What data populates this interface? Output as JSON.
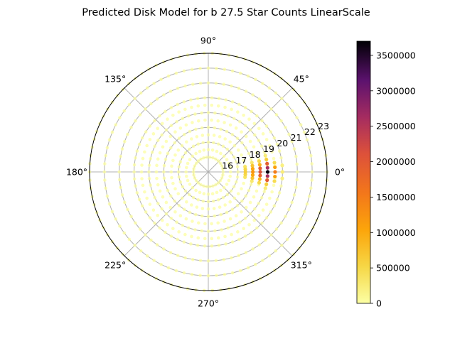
{
  "chart_data": {
    "type": "scatter",
    "projection": "polar",
    "title": "Predicted Disk Model for b 27.5  Star Counts  LinearScale",
    "theta_tick_labels": [
      "0°",
      "45°",
      "90°",
      "135°",
      "180°",
      "225°",
      "270°",
      "315°"
    ],
    "theta_ticks_deg": [
      0,
      45,
      90,
      135,
      180,
      225,
      270,
      315
    ],
    "r_tick_labels": [
      "16",
      "17",
      "18",
      "19",
      "20",
      "21",
      "22",
      "23"
    ],
    "r_ticks": [
      16,
      17,
      18,
      19,
      20,
      21,
      22,
      23
    ],
    "r_range": [
      15,
      23
    ],
    "r_label_angle_deg": 22.5,
    "grid": true,
    "colorbar": {
      "placement": "right",
      "colormap": "inferno_r",
      "range": [
        0,
        3700000
      ],
      "tick_labels": [
        "0",
        "500000",
        "1000000",
        "1500000",
        "2000000",
        "2500000",
        "3000000",
        "3500000"
      ],
      "ticks": [
        0,
        500000,
        1000000,
        1500000,
        2000000,
        2500000,
        3000000,
        3500000
      ]
    },
    "points": {
      "r_values": [
        16,
        16.5,
        17,
        17.5,
        18,
        18.5,
        19,
        19.5,
        20,
        21,
        22,
        23
      ],
      "counts_per_ring": [
        30,
        32,
        36,
        40,
        44,
        50,
        56,
        62,
        66,
        72,
        80,
        90
      ],
      "baseline_value": 20000,
      "hot_spots": [
        {
          "r": 19.0,
          "theta_deg": 0,
          "value": 3650000
        },
        {
          "r": 19.0,
          "theta_deg": 4,
          "value": 2600000
        },
        {
          "r": 19.0,
          "theta_deg": -4,
          "value": 2600000
        },
        {
          "r": 18.5,
          "theta_deg": 0,
          "value": 2100000
        },
        {
          "r": 18.5,
          "theta_deg": 4,
          "value": 1850000
        },
        {
          "r": 18.5,
          "theta_deg": -4,
          "value": 1850000
        },
        {
          "r": 19.0,
          "theta_deg": 8,
          "value": 1900000
        },
        {
          "r": 19.0,
          "theta_deg": -8,
          "value": 1950000
        },
        {
          "r": 19.5,
          "theta_deg": 0,
          "value": 1500000
        },
        {
          "r": 19.5,
          "theta_deg": 4,
          "value": 1100000
        },
        {
          "r": 19.5,
          "theta_deg": -4,
          "value": 1100000
        },
        {
          "r": 18.0,
          "theta_deg": 0,
          "value": 1200000
        },
        {
          "r": 18.0,
          "theta_deg": 4,
          "value": 1000000
        },
        {
          "r": 18.0,
          "theta_deg": -4,
          "value": 1000000
        },
        {
          "r": 18.0,
          "theta_deg": 8,
          "value": 700000
        },
        {
          "r": 18.0,
          "theta_deg": -8,
          "value": 700000
        },
        {
          "r": 18.5,
          "theta_deg": 8,
          "value": 900000
        },
        {
          "r": 18.5,
          "theta_deg": -8,
          "value": 900000
        },
        {
          "r": 17.5,
          "theta_deg": 0,
          "value": 600000
        },
        {
          "r": 17.5,
          "theta_deg": 4,
          "value": 500000
        },
        {
          "r": 17.5,
          "theta_deg": -4,
          "value": 500000
        },
        {
          "r": 18.5,
          "theta_deg": 12,
          "value": 500000
        },
        {
          "r": 18.5,
          "theta_deg": -12,
          "value": 500000
        },
        {
          "r": 19.0,
          "theta_deg": 12,
          "value": 600000
        },
        {
          "r": 19.0,
          "theta_deg": -12,
          "value": 600000
        },
        {
          "r": 19.5,
          "theta_deg": 8,
          "value": 450000
        },
        {
          "r": 19.5,
          "theta_deg": -8,
          "value": 450000
        },
        {
          "r": 17.5,
          "theta_deg": 8,
          "value": 350000
        },
        {
          "r": 17.5,
          "theta_deg": -8,
          "value": 350000
        },
        {
          "r": 18.0,
          "theta_deg": 12,
          "value": 300000
        },
        {
          "r": 18.0,
          "theta_deg": -12,
          "value": 300000
        },
        {
          "r": 20.0,
          "theta_deg": 0,
          "value": 250000
        },
        {
          "r": 20.0,
          "theta_deg": 5,
          "value": 200000
        },
        {
          "r": 20.0,
          "theta_deg": -5,
          "value": 200000
        },
        {
          "r": 19.0,
          "theta_deg": 16,
          "value": 250000
        },
        {
          "r": 19.0,
          "theta_deg": -16,
          "value": 250000
        }
      ]
    }
  }
}
